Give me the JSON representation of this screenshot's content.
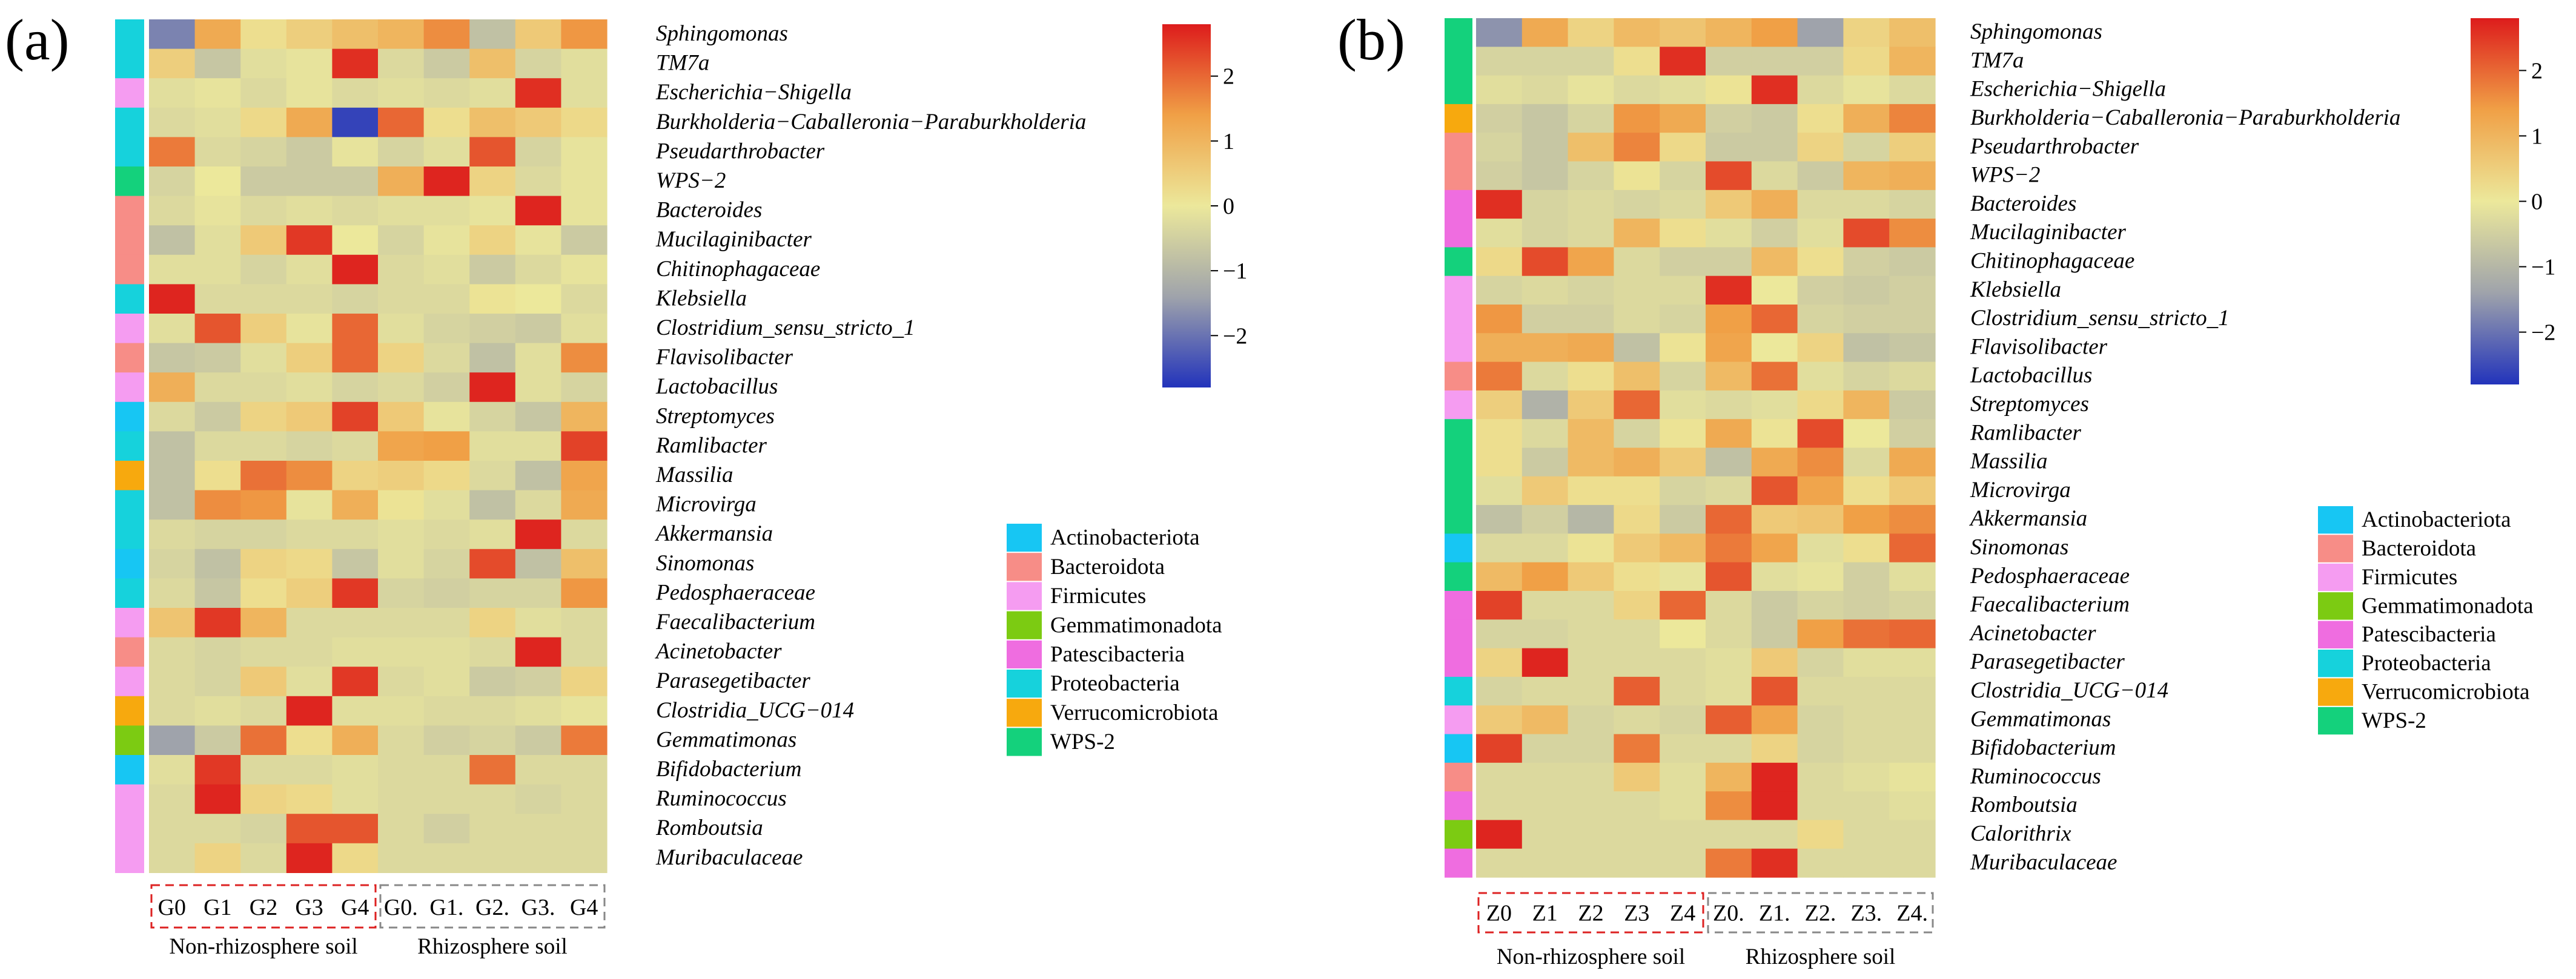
{
  "scale": {
    "min": -2.8,
    "max": 2.8,
    "ticks": [
      2,
      1,
      0,
      -1,
      -2
    ],
    "tick_labels": [
      "2",
      "1",
      "0",
      "−1",
      "−2"
    ],
    "colors": [
      "#2233bb",
      "#9fa3ab",
      "#ece89b",
      "#f0a046",
      "#dd1c1c"
    ]
  },
  "phyla": [
    {
      "name": "Actinobacteriota",
      "color": "#17c6f3"
    },
    {
      "name": "Bacteroidota",
      "color": "#f78d87"
    },
    {
      "name": "Firmicutes",
      "color": "#f59cf1"
    },
    {
      "name": "Gemmatimonadota",
      "color": "#7ccb12"
    },
    {
      "name": "Patescibacteria",
      "color": "#ef6de0"
    },
    {
      "name": "Proteobacteria",
      "color": "#16d2dc"
    },
    {
      "name": "Verrucomicrobiota",
      "color": "#f7a90e"
    },
    {
      "name": "WPS-2",
      "color": "#14d17c"
    }
  ],
  "chart_data": [
    {
      "type": "heatmap",
      "panel": "(a)",
      "columns": [
        "G0",
        "G1",
        "G2",
        "G3",
        "G4",
        "G0.",
        "G1.",
        "G2.",
        "G3.",
        "G4"
      ],
      "groups": [
        {
          "label": "Non-rhizosphere soil",
          "start": 0,
          "end": 4,
          "border": "#dd2222"
        },
        {
          "label": "Rhizosphere soil",
          "start": 5,
          "end": 9,
          "border": "#888888"
        }
      ],
      "rows": [
        "Sphingomonas",
        "TM7a",
        "Escherichia−Shigella",
        "Burkholderia−Caballeronia−Paraburkholderia",
        "Pseudarthrobacter",
        "WPS−2",
        "Bacteroides",
        "Mucilaginibacter",
        "Chitinophagaceae",
        "Klebsiella",
        "Clostridium_sensu_stricto_1",
        "Flavisolibacter",
        "Lactobacillus",
        "Streptomyces",
        "Ramlibacter",
        "Massilia",
        "Microvirga",
        "Akkermansia",
        "Sinomonas",
        "Pedosphaeraceae",
        "Faecalibacterium",
        "Acinetobacter",
        "Parasegetibacter",
        "Clostridia_UCG−014",
        "Gemmatimonas",
        "Bifidobacterium",
        "Ruminococcus",
        "Romboutsia",
        "Muribaculaceae"
      ],
      "row_phylum": [
        "Proteobacteria",
        "Proteobacteria",
        "Firmicutes",
        "Proteobacteria",
        "Proteobacteria",
        "WPS-2",
        "Bacteroidota",
        "Bacteroidota",
        "Bacteroidota",
        "Proteobacteria",
        "Firmicutes",
        "Bacteroidota",
        "Firmicutes",
        "Actinobacteriota",
        "Proteobacteria",
        "Verrucomicrobiota",
        "Proteobacteria",
        "Proteobacteria",
        "Actinobacteriota",
        "Proteobacteria",
        "Firmicutes",
        "Bacteroidota",
        "Firmicutes",
        "Verrucomicrobiota",
        "Gemmatimonadota",
        "Actinobacteriota",
        "Firmicutes",
        "Firmicutes",
        "Firmicutes"
      ],
      "values": [
        [
          -1.8,
          1.2,
          0.2,
          0.5,
          0.8,
          1.0,
          1.6,
          -0.8,
          0.6,
          1.5
        ],
        [
          0.5,
          -0.7,
          -0.2,
          -0.1,
          2.6,
          -0.3,
          -0.6,
          0.8,
          -0.4,
          -0.2
        ],
        [
          -0.2,
          -0.1,
          -0.3,
          -0.1,
          -0.3,
          -0.2,
          -0.3,
          -0.2,
          2.6,
          -0.2
        ],
        [
          -0.3,
          -0.2,
          0.3,
          1.2,
          -2.6,
          2.0,
          0.2,
          0.8,
          0.6,
          0.3
        ],
        [
          1.8,
          -0.3,
          -0.4,
          -0.6,
          -0.1,
          -0.4,
          -0.2,
          2.2,
          -0.4,
          -0.1
        ],
        [
          -0.4,
          0.0,
          -0.6,
          -0.6,
          -0.6,
          1.1,
          2.7,
          0.4,
          -0.3,
          -0.1
        ],
        [
          -0.3,
          -0.1,
          -0.3,
          -0.2,
          -0.3,
          -0.2,
          -0.2,
          -0.1,
          2.7,
          -0.1
        ],
        [
          -0.8,
          -0.2,
          0.6,
          2.5,
          0.0,
          -0.4,
          -0.1,
          0.4,
          -0.1,
          -0.6
        ],
        [
          -0.2,
          -0.2,
          -0.4,
          -0.2,
          2.7,
          -0.3,
          -0.2,
          -0.6,
          -0.3,
          -0.1
        ],
        [
          2.7,
          -0.3,
          -0.3,
          -0.3,
          -0.4,
          -0.3,
          -0.3,
          0.1,
          0.0,
          -0.3
        ],
        [
          -0.2,
          2.2,
          0.5,
          -0.1,
          2.0,
          -0.2,
          -0.4,
          -0.5,
          -0.6,
          -0.2
        ],
        [
          -0.7,
          -0.6,
          -0.2,
          0.5,
          2.0,
          0.4,
          -0.3,
          -0.8,
          -0.2,
          1.6
        ],
        [
          1.1,
          -0.3,
          -0.3,
          -0.2,
          -0.4,
          -0.3,
          -0.5,
          2.7,
          -0.2,
          -0.4
        ],
        [
          -0.3,
          -0.6,
          0.4,
          0.6,
          2.4,
          0.6,
          -0.1,
          -0.4,
          -0.7,
          1.0
        ],
        [
          -0.8,
          -0.3,
          -0.3,
          -0.4,
          -0.3,
          1.3,
          1.4,
          -0.2,
          -0.2,
          2.4
        ],
        [
          -0.8,
          0.2,
          1.9,
          1.6,
          0.4,
          0.5,
          0.3,
          -0.3,
          -0.8,
          1.3
        ],
        [
          -0.8,
          1.6,
          1.5,
          -0.1,
          1.1,
          0.1,
          -0.2,
          -0.8,
          -0.3,
          1.2
        ],
        [
          -0.3,
          -0.4,
          -0.4,
          -0.3,
          -0.3,
          -0.2,
          -0.3,
          -0.2,
          2.7,
          -0.3
        ],
        [
          -0.4,
          -0.8,
          0.4,
          0.3,
          -0.7,
          -0.2,
          -0.4,
          2.3,
          -0.8,
          0.8
        ],
        [
          -0.3,
          -0.7,
          0.2,
          0.5,
          2.5,
          -0.4,
          -0.5,
          -0.4,
          -0.4,
          1.5
        ],
        [
          0.7,
          2.5,
          1.0,
          -0.3,
          -0.3,
          -0.3,
          -0.3,
          0.4,
          -0.2,
          -0.3
        ],
        [
          -0.3,
          -0.4,
          -0.3,
          -0.3,
          -0.2,
          -0.2,
          -0.2,
          -0.3,
          2.7,
          -0.3
        ],
        [
          -0.3,
          -0.4,
          0.6,
          -0.2,
          2.5,
          -0.3,
          -0.2,
          -0.6,
          -0.5,
          0.4
        ],
        [
          -0.3,
          -0.2,
          -0.3,
          2.7,
          -0.2,
          -0.2,
          -0.3,
          -0.3,
          -0.2,
          -0.1
        ],
        [
          -1.4,
          -0.6,
          1.9,
          0.2,
          1.1,
          -0.3,
          -0.5,
          -0.4,
          -0.6,
          1.8
        ],
        [
          -0.2,
          2.5,
          -0.3,
          -0.3,
          -0.2,
          -0.3,
          -0.3,
          1.9,
          -0.3,
          -0.3
        ],
        [
          -0.3,
          2.7,
          0.4,
          0.3,
          -0.2,
          -0.3,
          -0.3,
          -0.3,
          -0.4,
          -0.3
        ],
        [
          -0.3,
          -0.3,
          -0.4,
          2.2,
          2.2,
          -0.3,
          -0.5,
          -0.3,
          -0.3,
          -0.3
        ],
        [
          -0.3,
          0.4,
          -0.3,
          2.7,
          0.3,
          -0.3,
          -0.3,
          -0.3,
          -0.3,
          -0.3
        ]
      ]
    },
    {
      "type": "heatmap",
      "panel": "(b)",
      "columns": [
        "Z0",
        "Z1",
        "Z2",
        "Z3",
        "Z4",
        "Z0.",
        "Z1.",
        "Z2.",
        "Z3.",
        "Z4."
      ],
      "groups": [
        {
          "label": "Non-rhizosphere soil",
          "start": 0,
          "end": 4,
          "border": "#dd2222"
        },
        {
          "label": "Rhizosphere soil",
          "start": 5,
          "end": 9,
          "border": "#888888"
        }
      ],
      "rows": [
        "Sphingomonas",
        "TM7a",
        "Escherichia−Shigella",
        "Burkholderia−Caballeronia−Paraburkholderia",
        "Pseudarthrobacter",
        "WPS−2",
        "Bacteroides",
        "Mucilaginibacter",
        "Chitinophagaceae",
        "Klebsiella",
        "Clostridium_sensu_stricto_1",
        "Flavisolibacter",
        "Lactobacillus",
        "Streptomyces",
        "Ramlibacter",
        "Massilia",
        "Microvirga",
        "Akkermansia",
        "Sinomonas",
        "Pedosphaeraceae",
        "Faecalibacterium",
        "Acinetobacter",
        "Parasegetibacter",
        "Clostridia_UCG−014",
        "Gemmatimonas",
        "Bifidobacterium",
        "Ruminococcus",
        "Romboutsia",
        "Calorithrix",
        "Muribaculaceae"
      ],
      "row_phylum": [
        "WPS-2",
        "WPS-2",
        "WPS-2",
        "Verrucomicrobiota",
        "Bacteroidota",
        "Bacteroidota",
        "Patescibacteria",
        "Patescibacteria",
        "WPS-2",
        "Firmicutes",
        "Firmicutes",
        "Firmicutes",
        "Bacteroidota",
        "Firmicutes",
        "WPS-2",
        "WPS-2",
        "WPS-2",
        "WPS-2",
        "Actinobacteriota",
        "WPS-2",
        "Patescibacteria",
        "Patescibacteria",
        "Patescibacteria",
        "Proteobacteria",
        "Firmicutes",
        "Actinobacteriota",
        "Bacteroidota",
        "Patescibacteria",
        "Gemmatimonadota",
        "Patescibacteria"
      ],
      "values": [
        [
          -1.6,
          1.2,
          0.4,
          0.9,
          0.7,
          1.0,
          1.4,
          -1.4,
          0.4,
          0.8
        ],
        [
          -0.4,
          -0.4,
          -0.4,
          0.2,
          2.6,
          -0.5,
          -0.5,
          -0.5,
          0.3,
          1.0
        ],
        [
          -0.2,
          -0.3,
          -0.1,
          -0.3,
          -0.2,
          0.1,
          2.6,
          -0.3,
          -0.1,
          -0.3
        ],
        [
          -0.5,
          -0.7,
          -0.4,
          1.5,
          1.2,
          -0.5,
          -0.6,
          0.2,
          1.1,
          1.7
        ],
        [
          -0.4,
          -0.7,
          0.8,
          1.7,
          0.3,
          -0.6,
          -0.6,
          0.4,
          -0.4,
          0.5
        ],
        [
          -0.5,
          -0.7,
          -0.4,
          0.1,
          -0.4,
          2.3,
          -0.3,
          -0.6,
          1.0,
          1.1
        ],
        [
          2.6,
          -0.4,
          -0.3,
          -0.4,
          -0.3,
          0.6,
          1.1,
          -0.3,
          -0.3,
          -0.4
        ],
        [
          -0.2,
          -0.4,
          -0.3,
          1.0,
          0.2,
          -0.2,
          -0.5,
          -0.2,
          2.3,
          1.6
        ],
        [
          0.3,
          2.3,
          1.3,
          -0.3,
          -0.5,
          -0.5,
          0.9,
          0.2,
          -0.5,
          -0.6
        ],
        [
          -0.4,
          -0.3,
          -0.4,
          -0.3,
          -0.3,
          2.6,
          0.0,
          -0.5,
          -0.6,
          -0.5
        ],
        [
          1.5,
          -0.5,
          -0.5,
          -0.3,
          -0.4,
          1.4,
          2.0,
          -0.4,
          -0.5,
          -0.5
        ],
        [
          1.1,
          1.1,
          1.2,
          -0.8,
          0.1,
          1.3,
          0.0,
          0.4,
          -0.8,
          -0.7
        ],
        [
          1.8,
          -0.3,
          0.2,
          0.8,
          -0.4,
          0.9,
          1.9,
          -0.2,
          -0.4,
          -0.3
        ],
        [
          0.5,
          -1.1,
          0.6,
          2.0,
          -0.2,
          -0.3,
          -0.2,
          0.3,
          1.0,
          -0.6
        ],
        [
          0.2,
          -0.3,
          0.9,
          -0.4,
          0.1,
          1.2,
          0.1,
          2.3,
          0.0,
          -0.5
        ],
        [
          0.2,
          -0.6,
          0.9,
          1.1,
          0.6,
          -0.8,
          1.2,
          1.6,
          -0.3,
          1.2
        ],
        [
          -0.2,
          0.6,
          0.2,
          0.2,
          -0.4,
          -0.3,
          2.2,
          1.3,
          0.2,
          0.6
        ],
        [
          -0.8,
          -0.5,
          -1.0,
          0.3,
          -0.6,
          2.0,
          0.6,
          0.7,
          1.4,
          1.6
        ],
        [
          -0.3,
          -0.3,
          0.1,
          0.6,
          0.9,
          1.8,
          1.3,
          -0.2,
          0.2,
          2.0
        ],
        [
          0.9,
          1.4,
          0.6,
          0.2,
          -0.1,
          2.2,
          -0.2,
          -0.1,
          -0.5,
          -0.2
        ],
        [
          2.4,
          -0.3,
          -0.3,
          0.4,
          2.0,
          -0.3,
          -0.6,
          -0.4,
          -0.5,
          -0.4
        ],
        [
          -0.4,
          -0.4,
          -0.3,
          -0.3,
          0.0,
          -0.3,
          -0.6,
          1.4,
          1.9,
          2.0
        ],
        [
          0.4,
          2.7,
          -0.3,
          -0.3,
          -0.3,
          -0.2,
          0.6,
          -0.4,
          -0.2,
          -0.2
        ],
        [
          -0.4,
          -0.3,
          -0.3,
          2.1,
          -0.3,
          -0.2,
          2.2,
          -0.3,
          -0.3,
          -0.3
        ],
        [
          0.6,
          0.9,
          -0.4,
          -0.3,
          -0.4,
          2.1,
          1.3,
          -0.4,
          -0.3,
          -0.3
        ],
        [
          2.4,
          -0.4,
          -0.4,
          1.8,
          -0.3,
          -0.3,
          0.4,
          -0.4,
          -0.3,
          -0.3
        ],
        [
          -0.3,
          -0.3,
          -0.3,
          0.6,
          -0.2,
          1.0,
          2.7,
          -0.3,
          -0.2,
          -0.1
        ],
        [
          -0.3,
          -0.3,
          -0.3,
          -0.3,
          -0.2,
          1.6,
          2.7,
          -0.3,
          -0.3,
          -0.2
        ],
        [
          2.7,
          -0.3,
          -0.3,
          -0.3,
          -0.3,
          -0.3,
          -0.3,
          0.3,
          -0.3,
          -0.3
        ],
        [
          -0.3,
          -0.3,
          -0.3,
          -0.3,
          -0.3,
          1.8,
          2.6,
          -0.3,
          -0.3,
          -0.3
        ]
      ]
    }
  ]
}
